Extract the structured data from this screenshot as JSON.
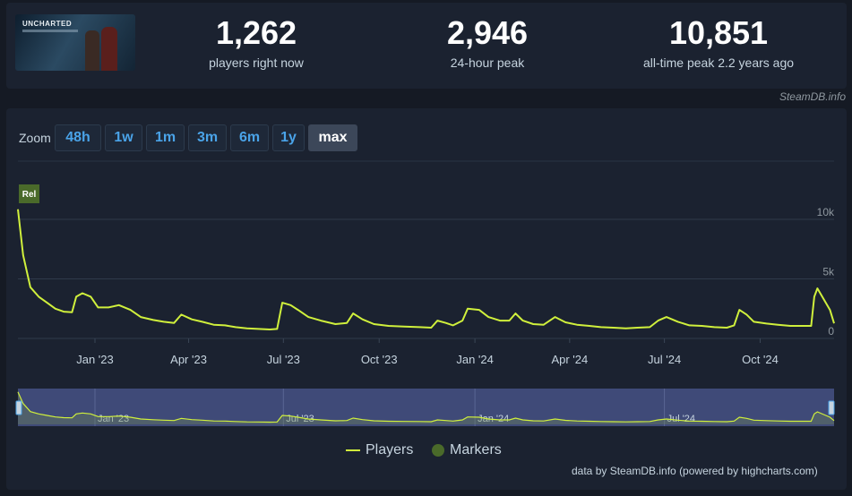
{
  "game": {
    "logo_text": "UNCHARTED"
  },
  "stats": [
    {
      "value": "1,262",
      "label": "players right now"
    },
    {
      "value": "2,946",
      "label": "24-hour peak"
    },
    {
      "value": "10,851",
      "label": "all-time peak 2.2 years ago"
    }
  ],
  "source_tag": "SteamDB.info",
  "zoom": {
    "label": "Zoom",
    "buttons": [
      "48h",
      "1w",
      "1m",
      "3m",
      "6m",
      "1y",
      "max"
    ],
    "active": "max"
  },
  "legend": {
    "players": "Players",
    "markers": "Markers"
  },
  "credit": "data by SteamDB.info (powered by highcharts.com)",
  "colors": {
    "series": "#d0f03c",
    "marker": "#4a6a2a",
    "navigator_bg": "#3f4a78",
    "accent": "#4aa3e8"
  },
  "chart_data": {
    "type": "line",
    "title": "",
    "xlabel": "",
    "ylabel": "",
    "ylim": [
      0,
      12000
    ],
    "yticks": [
      0,
      5000,
      10000
    ],
    "ytick_labels": [
      "0",
      "5k",
      "10k"
    ],
    "x_start": "2022-10-19",
    "x_end": "2024-12-11",
    "xticks": [
      {
        "date": "2023-01-01",
        "label": "Jan '23"
      },
      {
        "date": "2023-04-01",
        "label": "Apr '23"
      },
      {
        "date": "2023-07-01",
        "label": "Jul '23"
      },
      {
        "date": "2023-10-01",
        "label": "Oct '23"
      },
      {
        "date": "2024-01-01",
        "label": "Jan '24"
      },
      {
        "date": "2024-04-01",
        "label": "Apr '24"
      },
      {
        "date": "2024-07-01",
        "label": "Jul '24"
      },
      {
        "date": "2024-10-01",
        "label": "Oct '24"
      }
    ],
    "navigator_labels": [
      {
        "date": "2023-01-01",
        "label": "Jan '23"
      },
      {
        "date": "2023-07-01",
        "label": "Jul '23"
      },
      {
        "date": "2024-01-01",
        "label": "Jan '24"
      },
      {
        "date": "2024-07-01",
        "label": "Jul '24"
      }
    ],
    "markers": [
      {
        "date": "2022-10-19",
        "label": "Rel"
      }
    ],
    "series": [
      {
        "name": "Players",
        "points": [
          [
            "2022-10-19",
            10851
          ],
          [
            "2022-10-24",
            7000
          ],
          [
            "2022-10-31",
            4300
          ],
          [
            "2022-11-08",
            3500
          ],
          [
            "2022-11-16",
            3000
          ],
          [
            "2022-11-24",
            2500
          ],
          [
            "2022-12-02",
            2250
          ],
          [
            "2022-12-10",
            2200
          ],
          [
            "2022-12-14",
            3500
          ],
          [
            "2022-12-20",
            3800
          ],
          [
            "2022-12-28",
            3500
          ],
          [
            "2023-01-04",
            2600
          ],
          [
            "2023-01-14",
            2600
          ],
          [
            "2023-01-24",
            2800
          ],
          [
            "2023-02-04",
            2400
          ],
          [
            "2023-02-14",
            1800
          ],
          [
            "2023-02-26",
            1550
          ],
          [
            "2023-03-08",
            1400
          ],
          [
            "2023-03-18",
            1300
          ],
          [
            "2023-03-25",
            2000
          ],
          [
            "2023-04-04",
            1600
          ],
          [
            "2023-04-14",
            1400
          ],
          [
            "2023-04-25",
            1150
          ],
          [
            "2023-05-06",
            1100
          ],
          [
            "2023-05-16",
            950
          ],
          [
            "2023-05-27",
            850
          ],
          [
            "2023-06-07",
            800
          ],
          [
            "2023-06-18",
            750
          ],
          [
            "2023-06-25",
            800
          ],
          [
            "2023-06-30",
            3000
          ],
          [
            "2023-07-08",
            2800
          ],
          [
            "2023-07-15",
            2400
          ],
          [
            "2023-07-25",
            1800
          ],
          [
            "2023-08-06",
            1500
          ],
          [
            "2023-08-20",
            1200
          ],
          [
            "2023-08-31",
            1300
          ],
          [
            "2023-09-06",
            2100
          ],
          [
            "2023-09-15",
            1600
          ],
          [
            "2023-09-26",
            1200
          ],
          [
            "2023-10-10",
            1050
          ],
          [
            "2023-10-25",
            1000
          ],
          [
            "2023-11-09",
            950
          ],
          [
            "2023-11-20",
            900
          ],
          [
            "2023-11-26",
            1500
          ],
          [
            "2023-12-04",
            1300
          ],
          [
            "2023-12-11",
            1100
          ],
          [
            "2023-12-20",
            1500
          ],
          [
            "2023-12-25",
            2500
          ],
          [
            "2024-01-05",
            2400
          ],
          [
            "2024-01-14",
            1800
          ],
          [
            "2024-01-25",
            1500
          ],
          [
            "2024-02-03",
            1500
          ],
          [
            "2024-02-09",
            2100
          ],
          [
            "2024-02-16",
            1500
          ],
          [
            "2024-02-26",
            1200
          ],
          [
            "2024-03-07",
            1150
          ],
          [
            "2024-03-18",
            1800
          ],
          [
            "2024-03-28",
            1350
          ],
          [
            "2024-04-08",
            1150
          ],
          [
            "2024-04-20",
            1050
          ],
          [
            "2024-05-01",
            950
          ],
          [
            "2024-05-13",
            900
          ],
          [
            "2024-05-25",
            850
          ],
          [
            "2024-06-05",
            900
          ],
          [
            "2024-06-17",
            950
          ],
          [
            "2024-06-25",
            1500
          ],
          [
            "2024-07-03",
            1800
          ],
          [
            "2024-07-14",
            1400
          ],
          [
            "2024-07-25",
            1100
          ],
          [
            "2024-08-06",
            1050
          ],
          [
            "2024-08-18",
            950
          ],
          [
            "2024-08-30",
            900
          ],
          [
            "2024-09-06",
            1100
          ],
          [
            "2024-09-11",
            2400
          ],
          [
            "2024-09-18",
            2000
          ],
          [
            "2024-09-25",
            1400
          ],
          [
            "2024-10-07",
            1250
          ],
          [
            "2024-10-18",
            1150
          ],
          [
            "2024-10-30",
            1050
          ],
          [
            "2024-11-09",
            1050
          ],
          [
            "2024-11-19",
            1050
          ],
          [
            "2024-11-22",
            3500
          ],
          [
            "2024-11-25",
            4200
          ],
          [
            "2024-12-01",
            3300
          ],
          [
            "2024-12-07",
            2400
          ],
          [
            "2024-12-11",
            1262
          ]
        ]
      }
    ]
  }
}
